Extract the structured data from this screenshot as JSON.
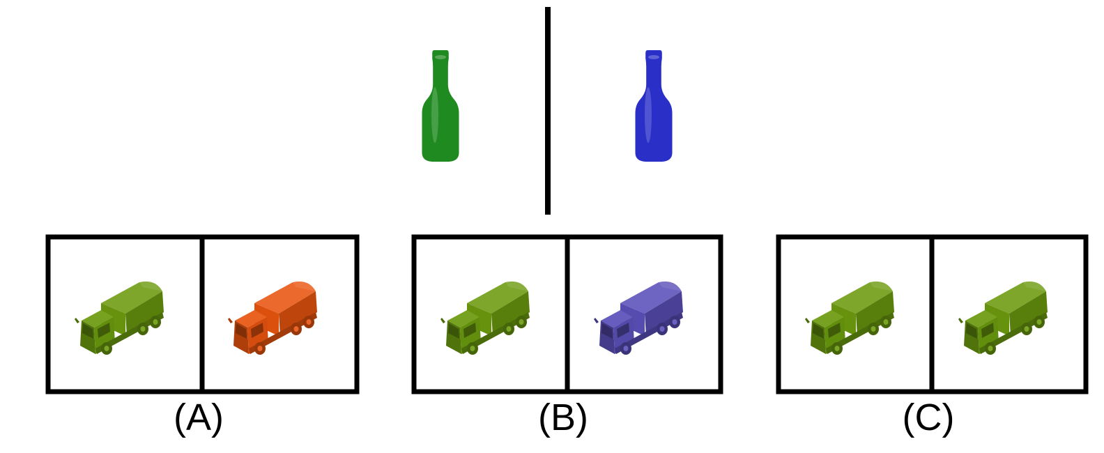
{
  "prompt": {
    "left_object": {
      "type": "bottle",
      "color": "#1f8a1f"
    },
    "right_object": {
      "type": "bottle",
      "color": "#2a2fc8"
    }
  },
  "options": [
    {
      "label": "(A)",
      "left_truck_color": "#6b9a0e",
      "right_truck_color": "#e8540f"
    },
    {
      "label": "(B)",
      "left_truck_color": "#6b9a0e",
      "right_truck_color": "#5a4fb8"
    },
    {
      "label": "(C)",
      "left_truck_color": "#6b9a0e",
      "right_truck_color": "#6b9a0e"
    }
  ]
}
